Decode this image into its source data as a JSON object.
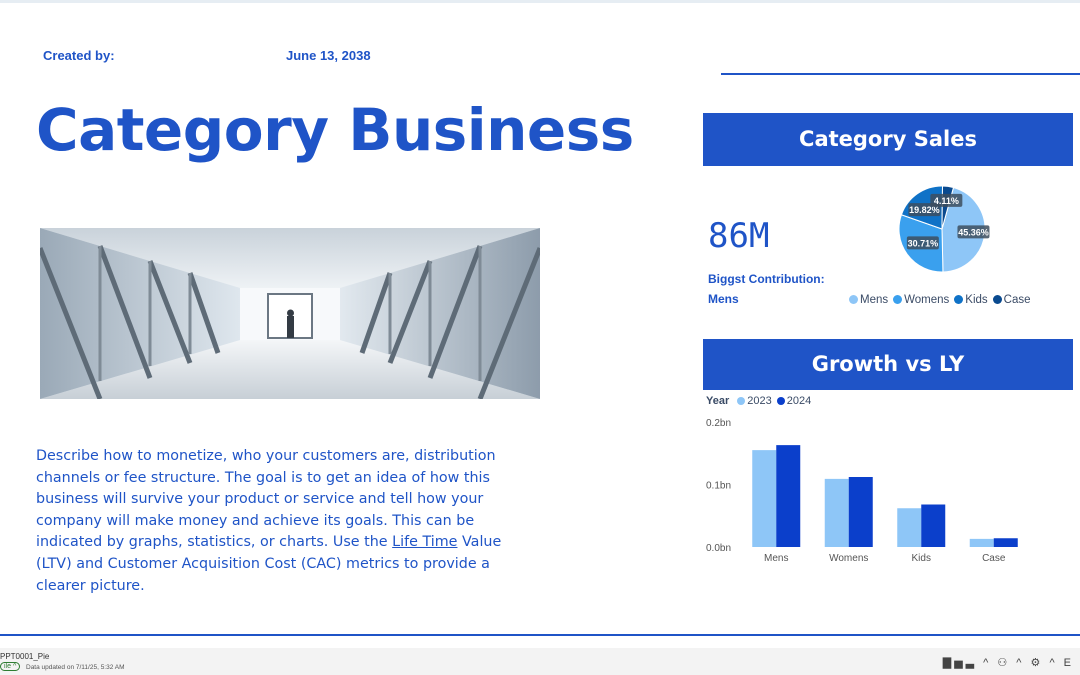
{
  "header": {
    "created_label": "Created by:",
    "date": "June 13, 2038",
    "title": "Category Business"
  },
  "description": {
    "part1": "Describe how to monetize, who your customers are, distribution channels or fee structure. The goal is to get an idea of how this business will survive your product or service and tell how your company will make money and achieve its goals. This can be indicated by graphs, statistics, or charts. Use the ",
    "link": "Life Time",
    "part2": " Value (LTV) and Customer Acquisition Cost (CAC) metrics to provide a clearer picture."
  },
  "category_sales": {
    "banner": "Category Sales",
    "total": "86M",
    "contribution_label": "Biggst Contribution:",
    "contribution_value": "Mens"
  },
  "growth": {
    "banner": "Growth vs LY",
    "legend_title": "Year"
  },
  "chart_data": [
    {
      "type": "pie",
      "categories": [
        "Mens",
        "Womens",
        "Kids",
        "Case"
      ],
      "values": [
        45.36,
        30.71,
        19.82,
        4.11
      ],
      "labels": [
        "45.36%",
        "30.71%",
        "19.82%",
        "4.11%"
      ],
      "colors": [
        "#8ec6f7",
        "#3aa0ee",
        "#0f72c7",
        "#0a4a8f"
      ],
      "legend": "bottom"
    },
    {
      "type": "bar",
      "categories": [
        "Mens",
        "Womens",
        "Kids",
        "Case"
      ],
      "series": [
        {
          "name": "2023",
          "values": [
            0.155,
            0.109,
            0.062,
            0.013
          ],
          "color": "#8ec6f7"
        },
        {
          "name": "2024",
          "values": [
            0.163,
            0.112,
            0.068,
            0.014
          ],
          "color": "#0b3fcb"
        }
      ],
      "yticks": [
        "0.0bn",
        "0.1bn",
        "0.2bn"
      ],
      "ylim": [
        0,
        0.2
      ],
      "legend": "top-left"
    }
  ],
  "status_bar": {
    "file": "PPT0001_Pie",
    "pill": "ile ^",
    "updated": "Data updated on 7/11/25, 5:32 AM",
    "icons": "▇▅▃ ^   ⚇ ^   ⚙ ^   E"
  }
}
